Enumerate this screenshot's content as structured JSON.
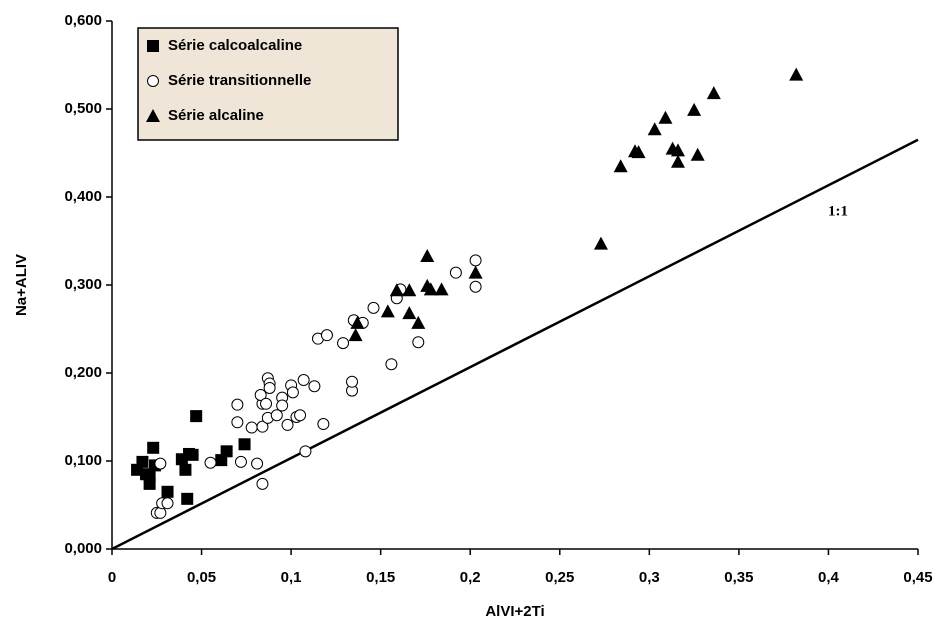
{
  "chart_data": {
    "type": "scatter",
    "xlabel": "AlVI+2Ti",
    "ylabel": "Na+ALIV",
    "xlim": [
      0,
      0.45
    ],
    "ylim": [
      0,
      0.6
    ],
    "xticks": [
      0,
      {
        "value": 0.05,
        "label": "0,05"
      },
      {
        "value": 0.1,
        "label": "0,1"
      },
      {
        "value": 0.15,
        "label": "0,15"
      },
      {
        "value": 0.2,
        "label": "0,2"
      },
      {
        "value": 0.25,
        "label": "0,25"
      },
      {
        "value": 0.3,
        "label": "0,3"
      },
      {
        "value": 0.35,
        "label": "0,35"
      },
      {
        "value": 0.4,
        "label": "0,4"
      },
      {
        "value": 0.45,
        "label": "0,45"
      }
    ],
    "yticks": [
      {
        "value": 0,
        "label": "0,000"
      },
      {
        "value": 0.1,
        "label": "0,100"
      },
      {
        "value": 0.2,
        "label": "0,200"
      },
      {
        "value": 0.3,
        "label": "0,300"
      },
      {
        "value": 0.4,
        "label": "0,400"
      },
      {
        "value": 0.5,
        "label": "0,500"
      },
      {
        "value": 0.6,
        "label": "0,600"
      }
    ],
    "legend": "top-left",
    "series": [
      {
        "name": "Série calcoalcaline",
        "marker": "square",
        "color": "#000000",
        "x": [
          0.014,
          0.017,
          0.019,
          0.021,
          0.021,
          0.023,
          0.024,
          0.031,
          0.039,
          0.041,
          0.043,
          0.042,
          0.045,
          0.047,
          0.061,
          0.064,
          0.074
        ],
        "y": [
          0.09,
          0.099,
          0.085,
          0.083,
          0.074,
          0.115,
          0.095,
          0.065,
          0.102,
          0.09,
          0.108,
          0.057,
          0.107,
          0.151,
          0.101,
          0.111,
          0.119
        ]
      },
      {
        "name": "Série transitionnelle",
        "marker": "circle",
        "color": "#000000",
        "x": [
          0.025,
          0.027,
          0.028,
          0.031,
          0.027,
          0.055,
          0.072,
          0.081,
          0.084,
          0.07,
          0.07,
          0.078,
          0.084,
          0.084,
          0.083,
          0.086,
          0.087,
          0.088,
          0.088,
          0.087,
          0.092,
          0.095,
          0.095,
          0.098,
          0.1,
          0.101,
          0.103,
          0.105,
          0.108,
          0.107,
          0.113,
          0.115,
          0.118,
          0.12,
          0.129,
          0.134,
          0.134,
          0.135,
          0.14,
          0.146,
          0.156,
          0.159,
          0.161,
          0.171,
          0.192,
          0.203,
          0.203
        ],
        "y": [
          0.041,
          0.041,
          0.052,
          0.052,
          0.097,
          0.098,
          0.099,
          0.097,
          0.074,
          0.164,
          0.144,
          0.138,
          0.139,
          0.165,
          0.175,
          0.165,
          0.194,
          0.188,
          0.183,
          0.149,
          0.152,
          0.172,
          0.163,
          0.141,
          0.186,
          0.178,
          0.15,
          0.152,
          0.111,
          0.192,
          0.185,
          0.239,
          0.142,
          0.243,
          0.234,
          0.18,
          0.19,
          0.26,
          0.257,
          0.274,
          0.21,
          0.285,
          0.295,
          0.235,
          0.314,
          0.328,
          0.298
        ]
      },
      {
        "name": "Série alcaline",
        "marker": "triangle",
        "color": "#000000",
        "x": [
          0.136,
          0.137,
          0.154,
          0.159,
          0.166,
          0.166,
          0.171,
          0.176,
          0.176,
          0.178,
          0.184,
          0.203,
          0.273,
          0.284,
          0.292,
          0.294,
          0.303,
          0.309,
          0.313,
          0.316,
          0.316,
          0.325,
          0.327,
          0.336,
          0.382
        ],
        "y": [
          0.243,
          0.257,
          0.27,
          0.294,
          0.294,
          0.268,
          0.257,
          0.333,
          0.299,
          0.295,
          0.295,
          0.314,
          0.347,
          0.435,
          0.452,
          0.451,
          0.477,
          0.49,
          0.455,
          0.453,
          0.44,
          0.499,
          0.448,
          0.518,
          0.539
        ]
      }
    ],
    "reference_line": {
      "label": "1:1",
      "x": [
        0,
        0.45
      ],
      "y": [
        0,
        0.465
      ]
    }
  }
}
